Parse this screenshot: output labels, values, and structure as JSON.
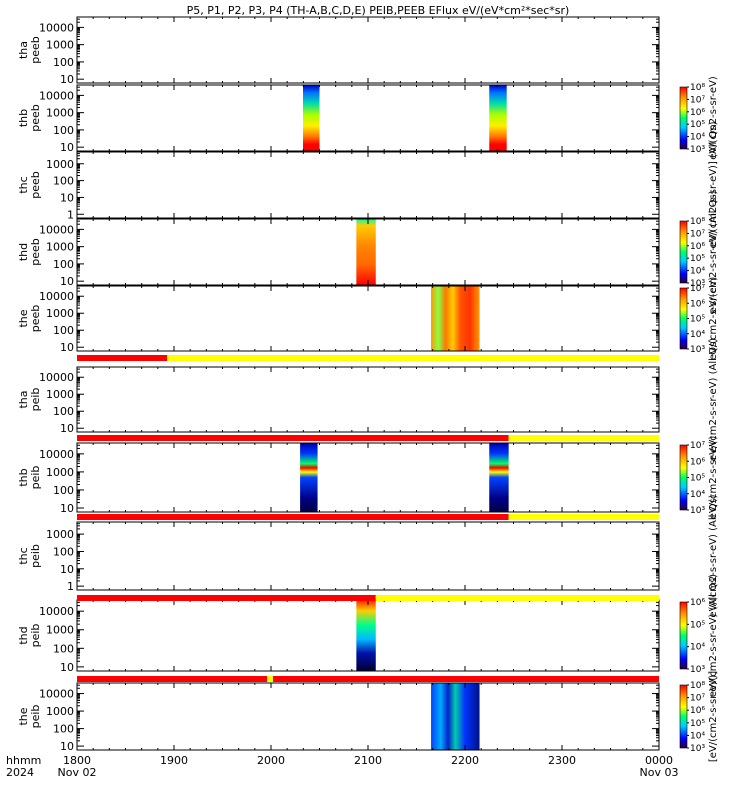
{
  "header": {
    "title": "P5, P1, P2, P3, P4 (TH-A,B,C,D,E) PEIB,PEEB EFlux eV/(eV*cm²*sec*sr)"
  },
  "chart_data": {
    "type": "heatmap",
    "x_axis": {
      "label": "hhmm",
      "year": "2024",
      "tick_labels": [
        "1800",
        "1900",
        "2000",
        "2100",
        "2200",
        "2300",
        "0000"
      ],
      "tick_hours": [
        18,
        19,
        20,
        21,
        22,
        23,
        24
      ],
      "range_hours": [
        18,
        24
      ],
      "date_labels": {
        "start": "Nov 02",
        "end": "Nov 03"
      }
    },
    "panels": [
      {
        "id": "tha-peeb",
        "probe": "tha",
        "product": "peeb",
        "yscale": "log",
        "y_ticks": [
          "10000",
          "1000",
          "100",
          "10"
        ],
        "y_tick_values": [
          10000,
          1000,
          100,
          10
        ],
        "y_range": [
          6,
          40000
        ],
        "bursts": [],
        "colorbar": null,
        "cb_label": ""
      },
      {
        "id": "thb-peeb",
        "probe": "thb",
        "product": "peeb",
        "yscale": "log",
        "y_ticks": [
          "10000",
          "1000",
          "100",
          "10"
        ],
        "y_tick_values": [
          10000,
          1000,
          100,
          10
        ],
        "y_range": [
          6,
          40000
        ],
        "bursts": [
          {
            "start": 20.33,
            "end": 20.5,
            "style": "peeb-b"
          },
          {
            "start": 22.25,
            "end": 22.43,
            "style": "peeb-b"
          }
        ],
        "colorbar": {
          "labels": [
            "10⁸",
            "10⁷",
            "10⁶",
            "10⁵",
            "10⁴",
            "10³"
          ],
          "min_exp": 3,
          "max_exp": 8
        },
        "cb_label": "eV/(cm2-s-sr-eV)"
      },
      {
        "id": "thc-peeb",
        "probe": "thc",
        "product": "peeb",
        "yscale": "log",
        "y_ticks": [
          "1000",
          "100",
          "10",
          "1"
        ],
        "y_tick_values": [
          1000,
          100,
          10,
          1
        ],
        "y_range": [
          0.6,
          5000
        ],
        "bursts": [],
        "colorbar": null,
        "cb_label": "eV/(cm2-s-sr-eV)] (All Qs)"
      },
      {
        "id": "thd-peeb",
        "probe": "thd",
        "product": "peeb",
        "yscale": "log",
        "y_ticks": [
          "10000",
          "1000",
          "100",
          "10"
        ],
        "y_tick_values": [
          10000,
          1000,
          100,
          10
        ],
        "y_range": [
          6,
          40000
        ],
        "bursts": [
          {
            "start": 20.88,
            "end": 21.08,
            "style": "peeb-d"
          }
        ],
        "colorbar": {
          "labels": [
            "10⁸",
            "10⁷",
            "10⁶",
            "10⁵",
            "10⁴",
            "10³"
          ],
          "min_exp": 3,
          "max_exp": 8
        },
        "cb_label": "eV/(cm2-s-sr-eV) (All Qs)"
      },
      {
        "id": "the-peeb",
        "probe": "the",
        "product": "peeb",
        "yscale": "log",
        "y_ticks": [
          "10000",
          "1000",
          "100",
          "10"
        ],
        "y_tick_values": [
          10000,
          1000,
          100,
          10
        ],
        "y_range": [
          6,
          40000
        ],
        "bursts": [
          {
            "start": 21.65,
            "end": 22.15,
            "style": "peeb-e"
          }
        ],
        "colorbar": {
          "labels": [
            "10⁷",
            "10⁶",
            "10⁵",
            "10⁴",
            "10³"
          ],
          "min_exp": 3,
          "max_exp": 7
        },
        "cb_label": "eV/(cm2-s-sr-eV)"
      },
      {
        "id": "tha-peib",
        "probe": "tha",
        "product": "peib",
        "yscale": "log",
        "y_ticks": [
          "10000",
          "1000",
          "100",
          "10"
        ],
        "y_tick_values": [
          10000,
          1000,
          100,
          10
        ],
        "y_range": [
          6,
          40000
        ],
        "bursts": [],
        "colorbar": null,
        "cb_label": "eV/(cm2-s-sr-eV) (All Qs)"
      },
      {
        "id": "thb-peib",
        "probe": "thb",
        "product": "peib",
        "yscale": "log",
        "y_ticks": [
          "10000",
          "1000",
          "100",
          "10"
        ],
        "y_tick_values": [
          10000,
          1000,
          100,
          10
        ],
        "y_range": [
          6,
          40000
        ],
        "bursts": [
          {
            "start": 20.3,
            "end": 20.48,
            "style": "peib-b"
          },
          {
            "start": 22.25,
            "end": 22.45,
            "style": "peib-b"
          }
        ],
        "colorbar": {
          "labels": [
            "10⁷",
            "10⁶",
            "10⁵",
            "10⁴",
            "10³"
          ],
          "min_exp": 3,
          "max_exp": 7
        },
        "cb_label": "eV/(cm2-s-sr-eV)"
      },
      {
        "id": "thc-peib",
        "probe": "thc",
        "product": "peib",
        "yscale": "log",
        "y_ticks": [
          "1000",
          "100",
          "10",
          "1"
        ],
        "y_tick_values": [
          1000,
          100,
          10,
          1
        ],
        "y_range": [
          0.6,
          5000
        ],
        "bursts": [],
        "colorbar": null,
        "cb_label": "eV/(cm2-s-sr-eV) (All Qs)"
      },
      {
        "id": "thd-peib",
        "probe": "thd",
        "product": "peib",
        "yscale": "log",
        "y_ticks": [
          "10000",
          "1000",
          "100",
          "10"
        ],
        "y_tick_values": [
          10000,
          1000,
          100,
          10
        ],
        "y_range": [
          6,
          40000
        ],
        "bursts": [
          {
            "start": 20.88,
            "end": 21.08,
            "style": "peib-d"
          }
        ],
        "colorbar": {
          "labels": [
            "10⁶",
            "10⁵",
            "10⁴",
            "10³"
          ],
          "min_exp": 3,
          "max_exp": 6
        },
        "cb_label": "eV/(cm2-s-sr-eV) (All Qs)"
      },
      {
        "id": "the-peib",
        "probe": "the",
        "product": "peib",
        "yscale": "log",
        "y_ticks": [
          "10000",
          "1000",
          "100",
          "10"
        ],
        "y_tick_values": [
          10000,
          1000,
          100,
          10
        ],
        "y_range": [
          6,
          40000
        ],
        "bursts": [
          {
            "start": 21.65,
            "end": 22.15,
            "style": "peib-e"
          }
        ],
        "colorbar": {
          "labels": [
            "10⁸",
            "10⁷",
            "10⁶",
            "10⁵",
            "10⁴",
            "10³"
          ],
          "min_exp": 3,
          "max_exp": 8
        },
        "cb_label": "[eV/(cm2-s-sr-eV)]"
      }
    ],
    "mode_bars": [
      {
        "after_panel": "the-peeb",
        "segments": [
          {
            "start": 18.0,
            "end": 18.93,
            "color": "#ff0000"
          },
          {
            "start": 18.93,
            "end": 24.0,
            "color": "#ffff00"
          }
        ]
      },
      {
        "after_panel": "tha-peib",
        "segments": [
          {
            "start": 18.0,
            "end": 22.45,
            "color": "#ff0000"
          },
          {
            "start": 22.45,
            "end": 24.0,
            "color": "#ffff00"
          }
        ]
      },
      {
        "after_panel": "thb-peib",
        "segments": [
          {
            "start": 18.0,
            "end": 22.45,
            "color": "#ff0000"
          },
          {
            "start": 22.45,
            "end": 24.0,
            "color": "#ffff00"
          }
        ]
      },
      {
        "after_panel": "thc-peib",
        "segments": [
          {
            "start": 18.0,
            "end": 21.08,
            "color": "#ff0000"
          },
          {
            "start": 21.08,
            "end": 24.0,
            "color": "#ffff00"
          }
        ]
      },
      {
        "after_panel": "thd-peib",
        "segments": [
          {
            "start": 18.0,
            "end": 19.96,
            "color": "#ff0000"
          },
          {
            "start": 19.96,
            "end": 20.02,
            "color": "#ffff00"
          },
          {
            "start": 20.02,
            "end": 24.0,
            "color": "#ff0000"
          }
        ]
      }
    ]
  }
}
